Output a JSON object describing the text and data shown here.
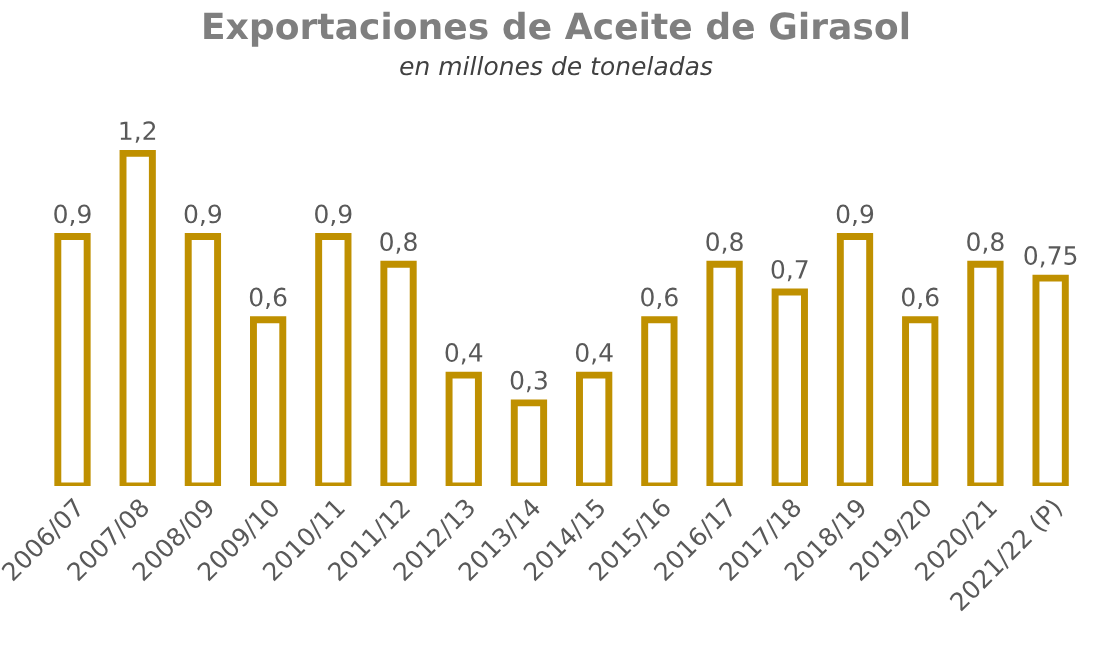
{
  "chart_data": {
    "type": "bar",
    "title": "Exportaciones de Aceite de Girasol",
    "subtitle": "en millones de toneladas",
    "categories": [
      "2006/07",
      "2007/08",
      "2008/09",
      "2009/10",
      "2010/11",
      "2011/12",
      "2012/13",
      "2013/14",
      "2014/15",
      "2015/16",
      "2016/17",
      "2017/18",
      "2018/19",
      "2019/20",
      "2020/21",
      "2021/22 (P)"
    ],
    "values": [
      0.9,
      1.2,
      0.9,
      0.6,
      0.9,
      0.8,
      0.4,
      0.3,
      0.4,
      0.6,
      0.8,
      0.7,
      0.9,
      0.6,
      0.8,
      0.75
    ],
    "value_labels": [
      "0,9",
      "1,2",
      "0,9",
      "0,6",
      "0,9",
      "0,8",
      "0,4",
      "0,3",
      "0,4",
      "0,6",
      "0,8",
      "0,7",
      "0,9",
      "0,6",
      "0,8",
      "0,75"
    ],
    "color": "#bf9000",
    "tick_labels": "x",
    "grid": false,
    "legend": false
  }
}
